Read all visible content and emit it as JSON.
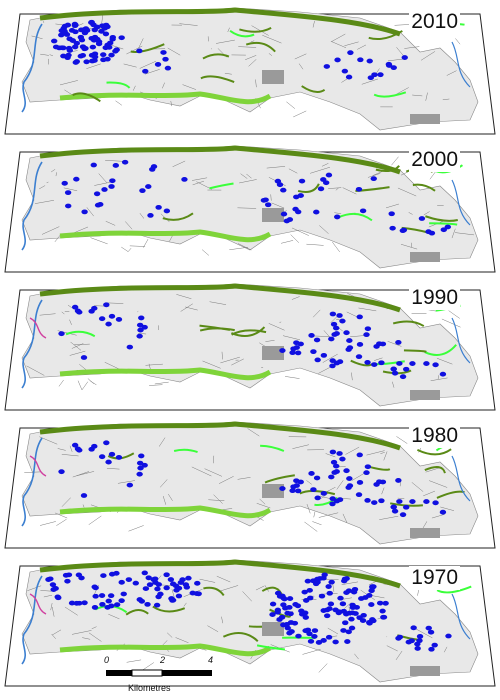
{
  "panels": [
    {
      "year": "2010",
      "dots": "dense-west"
    },
    {
      "year": "2000",
      "dots": "scattered"
    },
    {
      "year": "1990",
      "dots": "east-cluster"
    },
    {
      "year": "1980",
      "dots": "east-cluster"
    },
    {
      "year": "1970",
      "dots": "dense-both"
    }
  ],
  "scale": {
    "ticks": [
      "0",
      "2",
      "4"
    ],
    "unit": "Kilometres"
  },
  "colors": {
    "dot": "#1010e0",
    "dark_green": "#5a8a16",
    "light_green": "#7fd43a",
    "bright_green": "#3aff3a",
    "land": "#e8e8e8",
    "urban": "#9a9a9a",
    "river": "#3c7fd0",
    "boundary": "#d040a0"
  }
}
